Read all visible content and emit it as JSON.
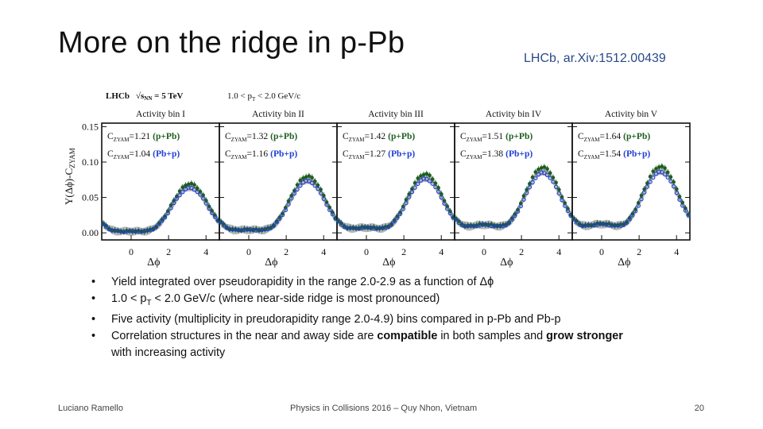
{
  "slide": {
    "title": "More on the ridge in p-Pb",
    "reference": "LHCb, ar.Xiv:1512.00439",
    "bullets": [
      {
        "parts": [
          {
            "t": "Yield integrated over pseudorapidity in the range 2.0-2.9 as a function of Δϕ",
            "b": false
          }
        ]
      },
      {
        "parts": [
          {
            "t": "1.0 < p",
            "b": false
          },
          {
            "t": "T",
            "sub": true
          },
          {
            "t": " < 2.0 GeV/c (where near-side ridge is most pronounced)",
            "b": false
          }
        ]
      },
      {
        "parts": [
          {
            "t": "Five activity (multiplicity in preudorapidity range 2.0-4.9) bins compared in p-Pb and Pb-p",
            "b": false
          }
        ]
      },
      {
        "parts": [
          {
            "t": "Correlation structures in the near and away side are ",
            "b": false
          },
          {
            "t": "compatible",
            "b": true
          },
          {
            "t": " in both samples and ",
            "b": false
          },
          {
            "t": "grow stronger",
            "b": true
          },
          {
            "t": " with increasing activity",
            "b": false
          }
        ]
      }
    ],
    "footer": {
      "left": "Luciano Ramello",
      "center": "Physics in Collisions 2016 – Quy Nhon, Vietnam",
      "page": "20"
    }
  },
  "chart_data": {
    "type": "scatter",
    "header": {
      "experiment": "LHCb",
      "energy": "√s",
      "energy_sub": "NN",
      "energy_value": " = 5 TeV",
      "pt_range": "1.0 < p",
      "pt_sub": "T",
      "pt_rest": " < 2.0 GeV/c"
    },
    "ylabel": "Y(Δϕ)-C",
    "ylabel_sub": "ZYAM",
    "xlabel": "Δϕ",
    "ylim": [
      -0.01,
      0.155
    ],
    "xlim": [
      -1.571,
      4.712
    ],
    "yticks": [
      "0.00",
      "0.05",
      "0.10",
      "0.15"
    ],
    "ytick_values": [
      0,
      0.05,
      0.1,
      0.15
    ],
    "xticks": [
      "0",
      "2",
      "4"
    ],
    "xtick_values": [
      0,
      2,
      4
    ],
    "series_labels": {
      "ppb": "(p+Pb)",
      "pbp": "(Pb+p)",
      "czyam": "C",
      "czyam_sub": "ZYAM"
    },
    "colors": {
      "ppb": "#1e5e1e",
      "pbp": "#1f3fd6",
      "band": "#7c7c7c"
    },
    "panels": [
      {
        "title": "Activity bin I",
        "czyam_ppb": "=1.21",
        "czyam_pbp": "=1.04",
        "near": 0.0023,
        "away": 0.0655
      },
      {
        "title": "Activity bin II",
        "czyam_ppb": "=1.32",
        "czyam_pbp": "=1.16",
        "near": 0.0045,
        "away": 0.0755
      },
      {
        "title": "Activity bin III",
        "czyam_ppb": "=1.42",
        "czyam_pbp": "=1.27",
        "near": 0.0075,
        "away": 0.0785
      },
      {
        "title": "Activity bin IV",
        "czyam_ppb": "=1.51",
        "czyam_pbp": "=1.38",
        "near": 0.0115,
        "away": 0.0875
      },
      {
        "title": "Activity bin V",
        "czyam_ppb": "=1.64",
        "czyam_pbp": "=1.54",
        "near": 0.0125,
        "away": 0.0885
      }
    ]
  }
}
